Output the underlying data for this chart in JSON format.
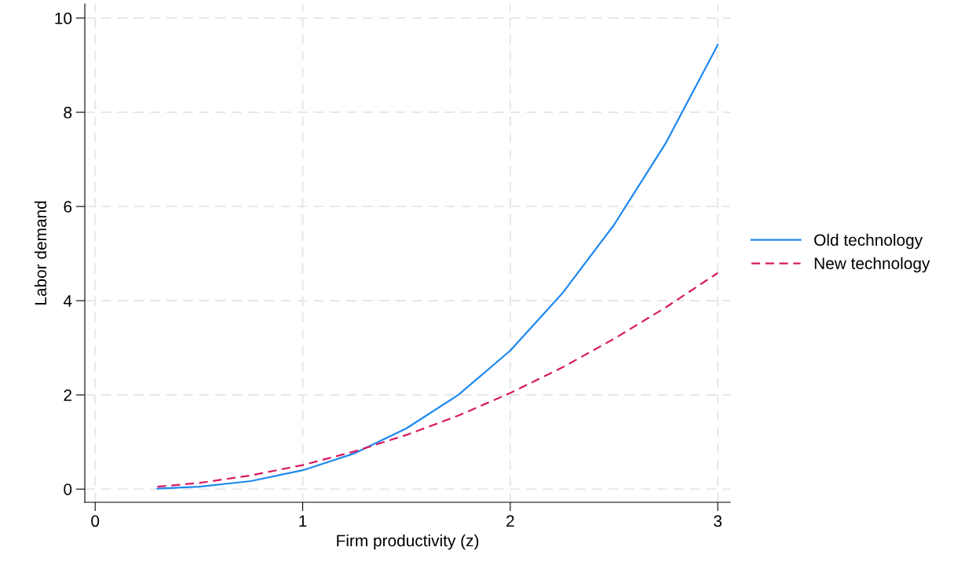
{
  "chart_data": {
    "type": "line",
    "xlabel": "Firm productivity (z)",
    "ylabel": "Labor demand",
    "x": [
      0.3,
      0.5,
      0.75,
      1,
      1.25,
      1.5,
      1.75,
      2,
      2.25,
      2.5,
      2.75,
      3
    ],
    "series": [
      {
        "name": "Old technology",
        "color": "#1e88f0",
        "line_style": "solid",
        "values": [
          0.01,
          0.05,
          0.17,
          0.4,
          0.76,
          1.29,
          2.0,
          2.94,
          4.15,
          5.61,
          7.35,
          9.43
        ]
      },
      {
        "name": "New technology",
        "color": "#d81b60",
        "line_style": "dashed",
        "values": [
          0.05,
          0.13,
          0.29,
          0.51,
          0.8,
          1.15,
          1.56,
          2.04,
          2.58,
          3.19,
          3.86,
          4.59
        ]
      }
    ],
    "xlim": [
      -0.05,
      3.06
    ],
    "ylim": [
      -0.28,
      10.3
    ],
    "xticks": [
      0,
      1,
      2,
      3
    ],
    "yticks": [
      0,
      2,
      4,
      6,
      8,
      10
    ],
    "grid": true,
    "legend": "right"
  }
}
